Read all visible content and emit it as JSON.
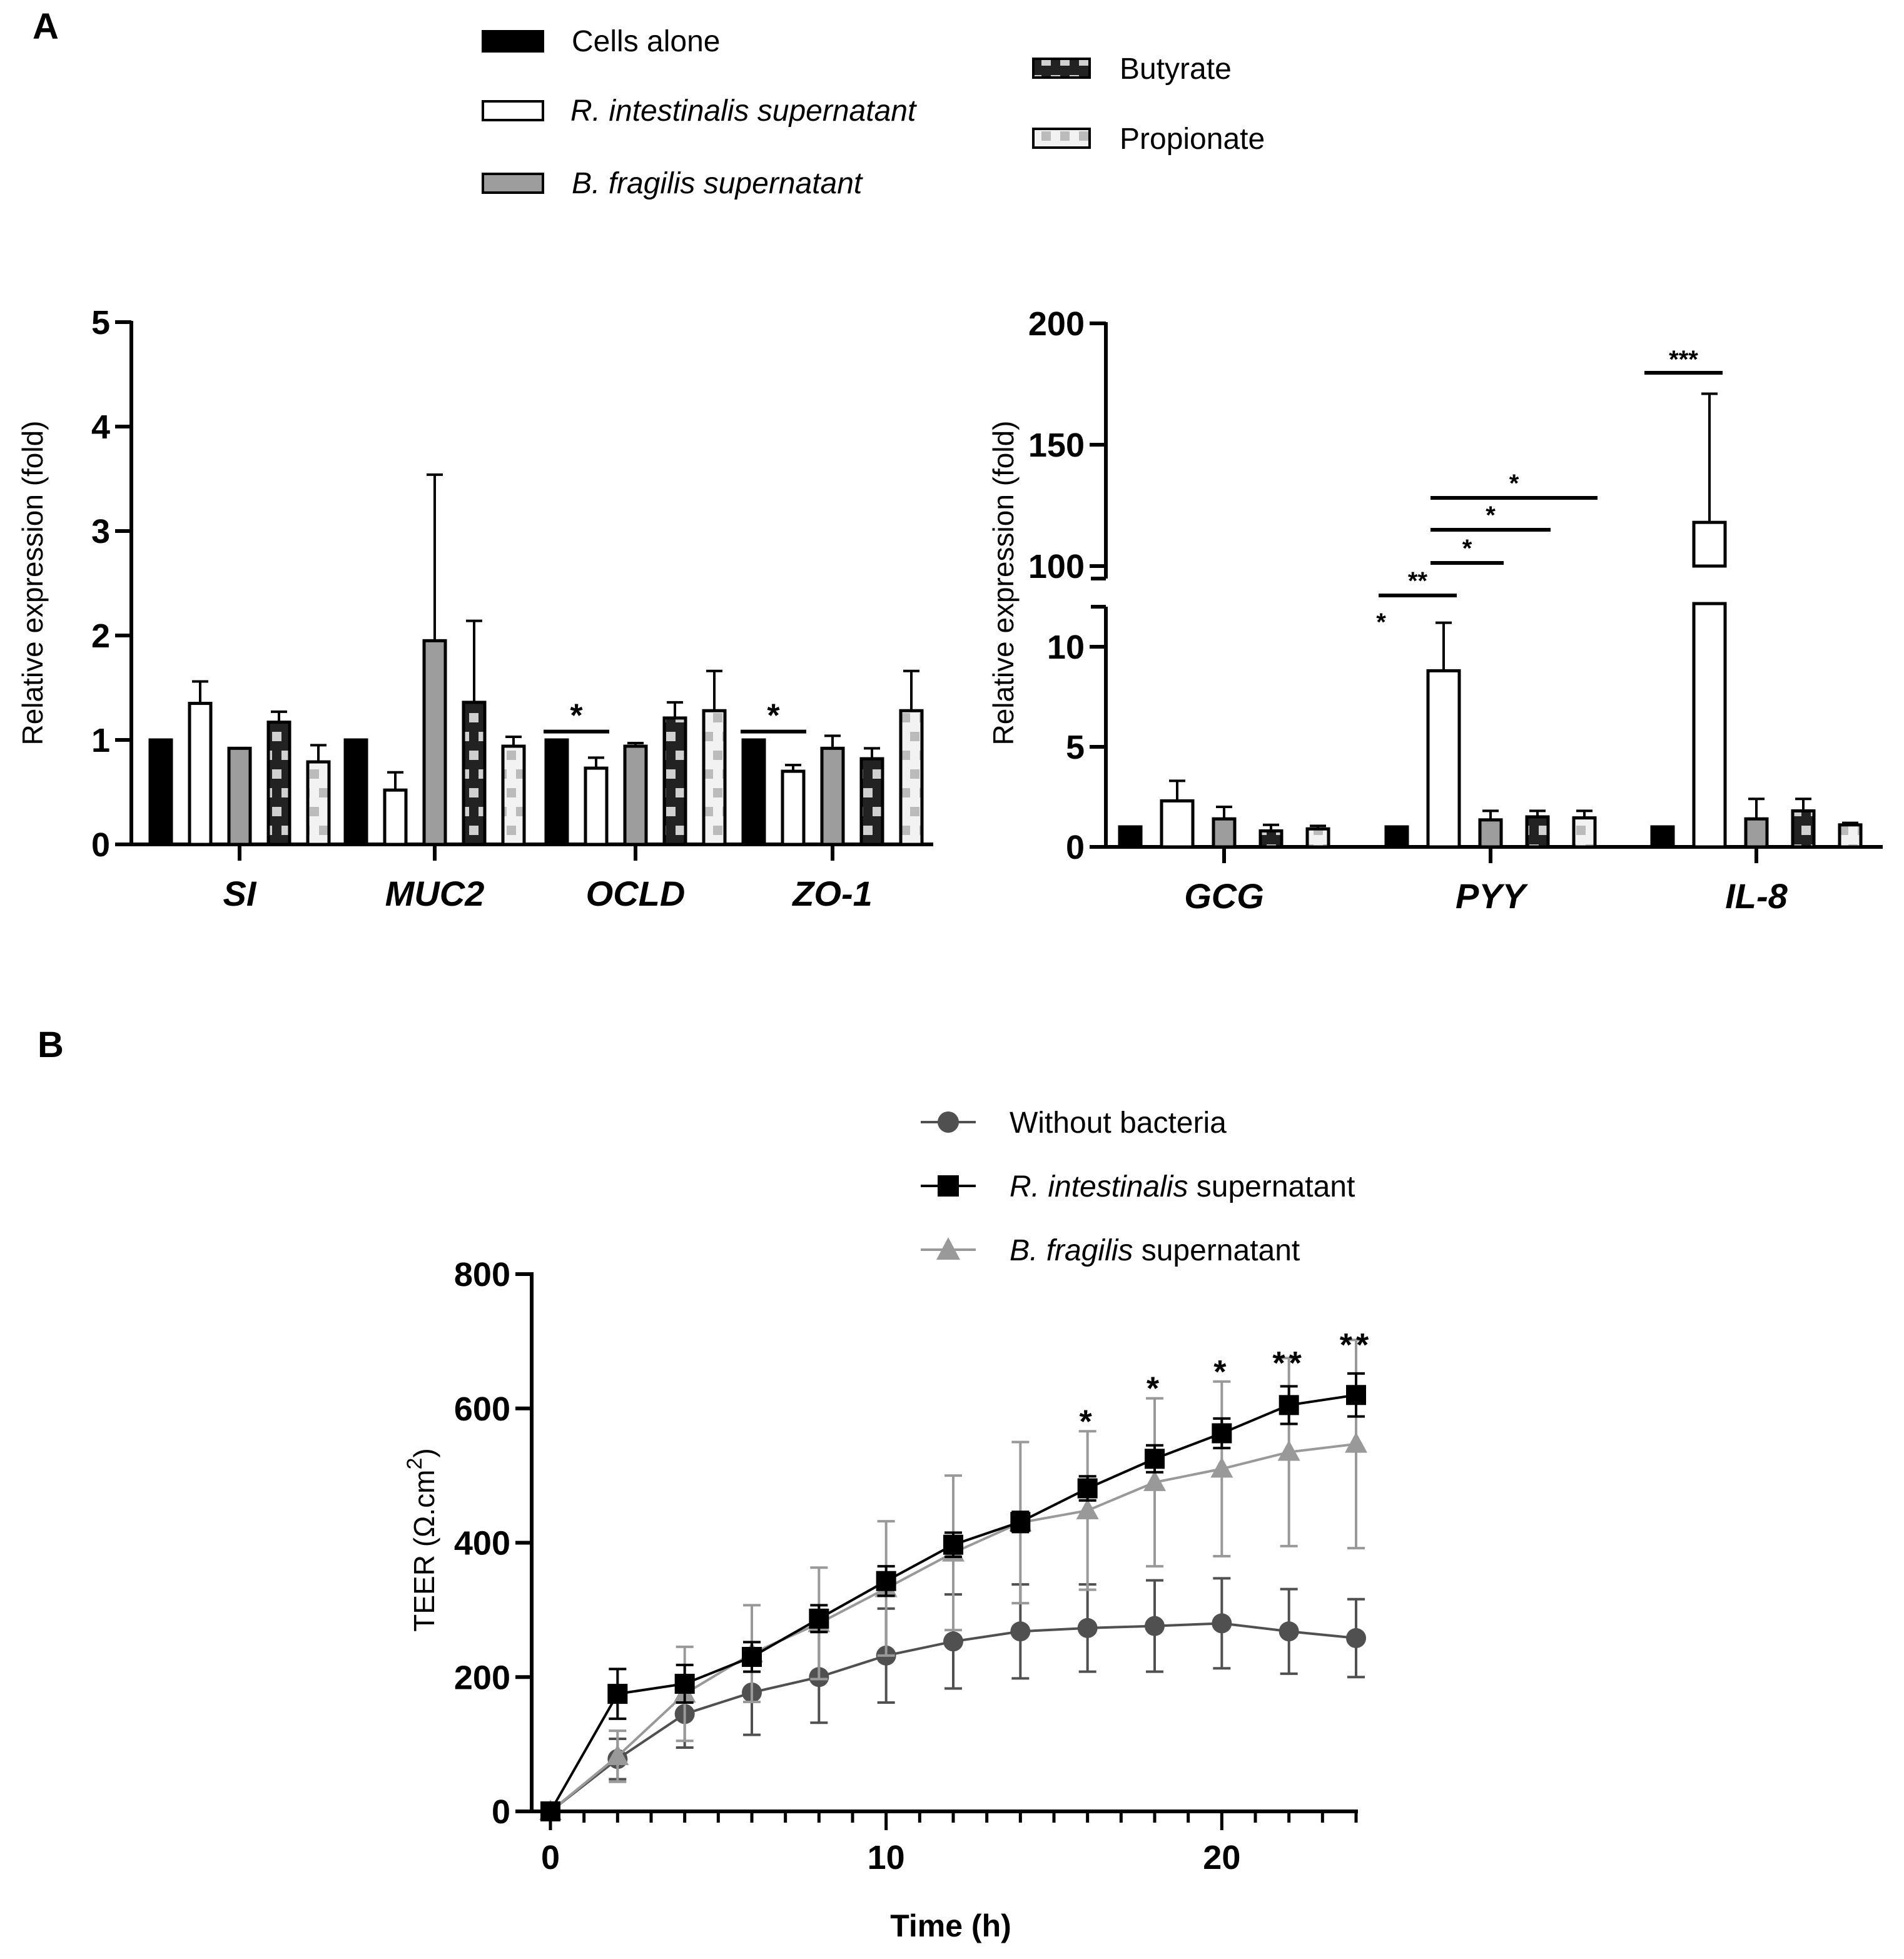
{
  "panels": {
    "a": "A",
    "b": "B"
  },
  "colors": {
    "cells_alone": "#000000",
    "r_intestinalis_bar": "#ffffff",
    "b_fragilis_bar": "#9d9d9d",
    "butyrate_dark": "#222222",
    "butyrate_light": "#d0d0d0",
    "propionate_dark": "#bbbbbb",
    "propionate_light": "#f2f2f2",
    "without_bacteria": "#505050",
    "r_intestinalis_line": "#000000",
    "b_fragilis_line": "#999999"
  },
  "legend_a": [
    {
      "key": "cells_alone",
      "label": "Cells alone",
      "icon": "solid-black-swatch"
    },
    {
      "key": "r_intestinalis",
      "label": "R. intestinalis supernatant",
      "italic": true,
      "icon": "open-white-swatch"
    },
    {
      "key": "b_fragilis",
      "label": "B. fragilis supernatant",
      "italic": true,
      "icon": "grey-swatch"
    },
    {
      "key": "butyrate",
      "label": "Butyrate",
      "icon": "dark-checker-swatch"
    },
    {
      "key": "propionate",
      "label": "Propionate",
      "icon": "light-checker-swatch"
    }
  ],
  "legend_b": [
    {
      "key": "without",
      "italic_part": "",
      "rest": "Without bacteria",
      "icon": "circle-marker-icon"
    },
    {
      "key": "r_int",
      "italic_part": "R. intestinalis",
      "rest": " supernatant",
      "icon": "square-marker-icon"
    },
    {
      "key": "b_frag",
      "italic_part": "B. fragilis",
      "rest": " supernatant",
      "icon": "triangle-marker-icon"
    }
  ],
  "chart_data": [
    {
      "type": "bar",
      "panel": "A-left",
      "ylabel": "Relative expression (fold)",
      "ylim": [
        0,
        5
      ],
      "yticks": [
        "0",
        "1",
        "2",
        "3",
        "4",
        "5"
      ],
      "categories": [
        "SI",
        "MUC2",
        "OCLD",
        "ZO-1"
      ],
      "series": [
        {
          "name": "Cells alone",
          "values": [
            1.0,
            1.0,
            1.0,
            1.0
          ],
          "errors": [
            0,
            0,
            0,
            0
          ]
        },
        {
          "name": "R. intestinalis supernatant",
          "values": [
            1.35,
            0.52,
            0.73,
            0.7
          ],
          "errors": [
            0.21,
            0.17,
            0.1,
            0.06
          ]
        },
        {
          "name": "B. fragilis supernatant",
          "values": [
            0.92,
            1.95,
            0.94,
            0.92
          ],
          "errors": [
            0,
            1.59,
            0.03,
            0.12
          ]
        },
        {
          "name": "Butyrate",
          "values": [
            1.17,
            1.36,
            1.21,
            0.82
          ],
          "errors": [
            0.1,
            0.78,
            0.15,
            0.1
          ]
        },
        {
          "name": "Propionate",
          "values": [
            0.79,
            0.94,
            1.28,
            1.28
          ],
          "errors": [
            0.16,
            0.09,
            0.38,
            0.38
          ]
        }
      ],
      "annotations": [
        {
          "text": "*",
          "category": "OCLD",
          "between": [
            "Cells alone",
            "R. intestinalis supernatant"
          ]
        },
        {
          "text": "*",
          "category": "ZO-1",
          "between": [
            "Cells alone",
            "R. intestinalis supernatant"
          ]
        }
      ]
    },
    {
      "type": "bar",
      "panel": "A-right",
      "ylabel": "Relative expression (fold)",
      "y_axis_break": [
        12,
        100
      ],
      "ylim": [
        0,
        200
      ],
      "yticks": [
        "0",
        "5",
        "10",
        "100",
        "150",
        "200"
      ],
      "categories": [
        "GCG",
        "PYY",
        "IL-8"
      ],
      "series": [
        {
          "name": "Cells alone",
          "values": [
            1.0,
            1.0,
            1.0
          ],
          "errors": [
            0,
            0,
            0
          ]
        },
        {
          "name": "R. intestinalis supernatant",
          "values": [
            2.3,
            8.8,
            118
          ],
          "errors": [
            1.0,
            2.4,
            53
          ]
        },
        {
          "name": "B. fragilis supernatant",
          "values": [
            1.4,
            1.35,
            1.4
          ],
          "errors": [
            0.6,
            0.45,
            1.0
          ]
        },
        {
          "name": "Butyrate",
          "values": [
            0.8,
            1.5,
            1.8
          ],
          "errors": [
            0.3,
            0.3,
            0.6
          ]
        },
        {
          "name": "Propionate",
          "values": [
            0.9,
            1.45,
            1.1
          ],
          "errors": [
            0.15,
            0.35,
            0.1
          ]
        }
      ],
      "annotations": [
        {
          "text": "*",
          "category": "PYY",
          "on": "R. intestinalis supernatant"
        },
        {
          "text": "**",
          "category": "PYY",
          "between": [
            "Cells alone",
            "R. intestinalis supernatant"
          ]
        },
        {
          "text": "*",
          "category": "PYY",
          "between": [
            "R. intestinalis supernatant",
            "B. fragilis supernatant"
          ]
        },
        {
          "text": "*",
          "category": "PYY",
          "between": [
            "R. intestinalis supernatant",
            "Butyrate"
          ]
        },
        {
          "text": "*",
          "category": "PYY",
          "between": [
            "R. intestinalis supernatant",
            "Propionate"
          ]
        },
        {
          "text": "***",
          "category": "IL-8",
          "between": [
            "Cells alone",
            "R. intestinalis supernatant"
          ]
        }
      ]
    },
    {
      "type": "line",
      "panel": "B",
      "xlabel": "Time (h)",
      "ylabel_main": "TEER (Ω.cm",
      "ylabel_sup": "2",
      "ylabel_close": ")",
      "xlim": [
        0,
        24
      ],
      "ylim": [
        0,
        800
      ],
      "xticks": [
        "0",
        "10",
        "20"
      ],
      "yticks": [
        "0",
        "200",
        "400",
        "600",
        "800"
      ],
      "x": [
        0,
        2,
        4,
        6,
        8,
        10,
        12,
        14,
        16,
        18,
        20,
        22,
        24
      ],
      "series": [
        {
          "name": "Without bacteria",
          "values": [
            0,
            78,
            145,
            177,
            200,
            232,
            253,
            268,
            273,
            276,
            280,
            268,
            258
          ],
          "errors": [
            0,
            30,
            50,
            63,
            68,
            70,
            70,
            70,
            65,
            68,
            67,
            63,
            58
          ]
        },
        {
          "name": "R. intestinalis supernatant",
          "values": [
            0,
            175,
            190,
            230,
            287,
            343,
            397,
            431,
            481,
            525,
            563,
            605,
            620
          ],
          "errors": [
            0,
            37,
            28,
            22,
            20,
            22,
            18,
            15,
            18,
            20,
            22,
            28,
            32
          ]
        },
        {
          "name": "B. fragilis supernatant",
          "values": [
            0,
            82,
            175,
            235,
            280,
            332,
            385,
            430,
            448,
            490,
            510,
            535,
            547
          ],
          "errors": [
            0,
            38,
            70,
            72,
            83,
            100,
            115,
            120,
            118,
            125,
            130,
            140,
            155
          ]
        }
      ],
      "annotations": [
        {
          "x": 16,
          "text": "*"
        },
        {
          "x": 18,
          "text": "*"
        },
        {
          "x": 20,
          "text": "*"
        },
        {
          "x": 22,
          "text": "**"
        },
        {
          "x": 24,
          "text": "**"
        }
      ]
    }
  ]
}
